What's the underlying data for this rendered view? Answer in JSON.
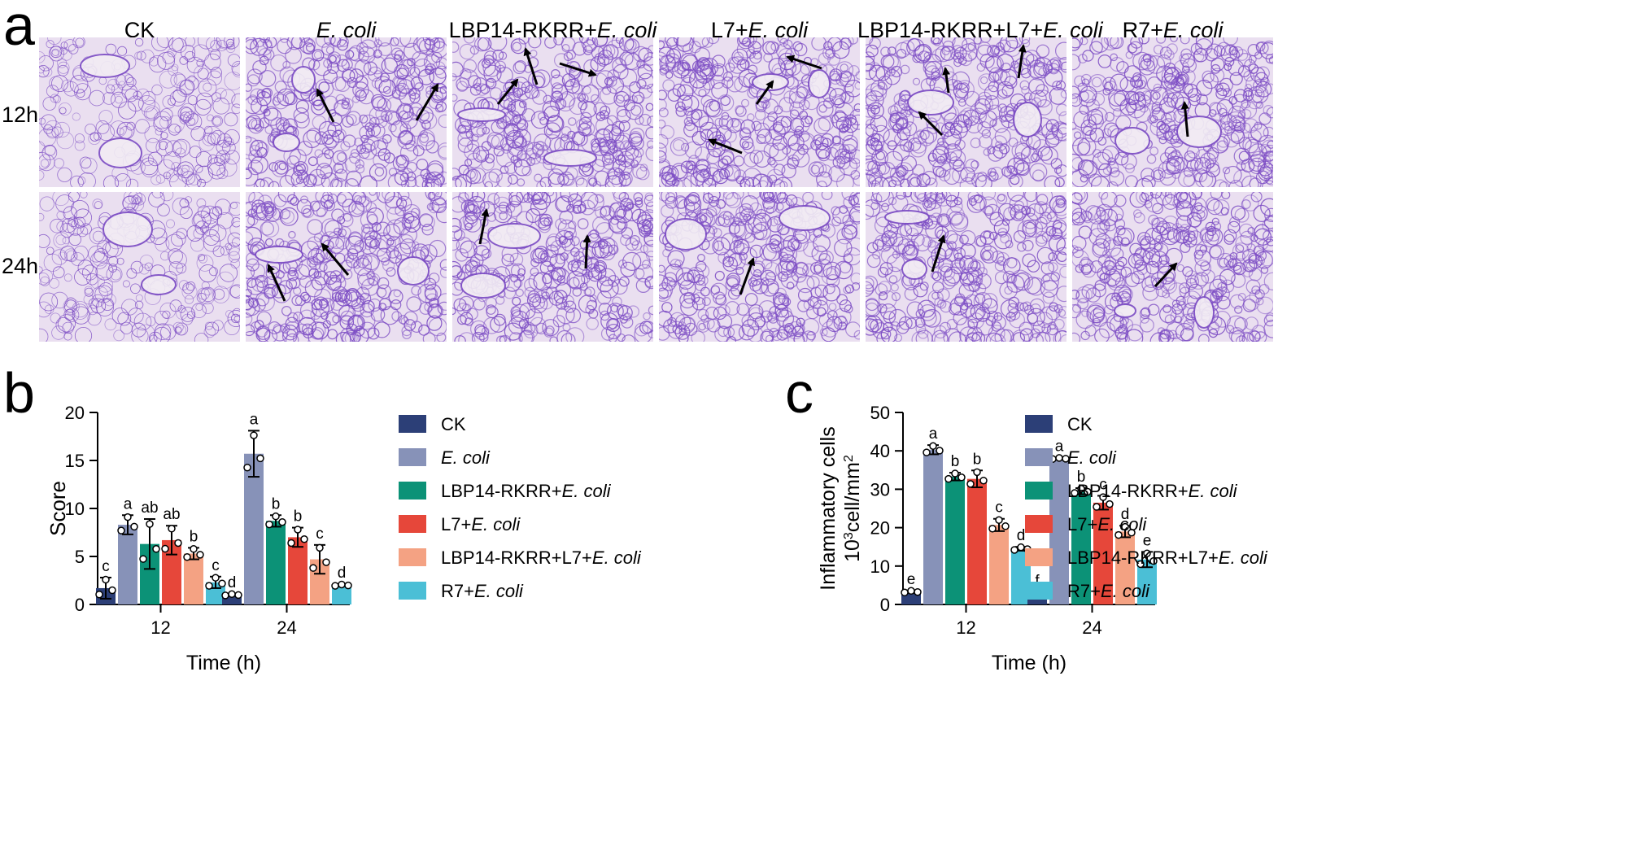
{
  "panels": {
    "a": "a",
    "b": "b",
    "c": "c"
  },
  "colors": {
    "CK": "#2c3f77",
    "E. coli": "#8792b8",
    "LBP14-RKRR+E. coli": "#0c9277",
    "L7+E. coli": "#e6473a",
    "LBP14-RKRR+L7+E. coli": "#f4a283",
    "R7+E. coli": "#4bbfd6",
    "tissue_bg": "#eadff0",
    "tissue_cell": "#7c4cc4"
  },
  "micrographs": {
    "columns": [
      {
        "pre": "CK",
        "ital": "",
        "post": ""
      },
      {
        "pre": "",
        "ital": "E. coli",
        "post": ""
      },
      {
        "pre": "LBP14-RKRR+",
        "ital": "E. coli",
        "post": ""
      },
      {
        "pre": "L7+",
        "ital": "E. coli",
        "post": ""
      },
      {
        "pre": "LBP14-RKRR+L7+",
        "ital": "E. coli",
        "post": ""
      },
      {
        "pre": "R7+",
        "ital": "E. coli",
        "post": ""
      }
    ],
    "rows": [
      "12h",
      "24h"
    ]
  },
  "chart_data": [
    {
      "id": "b",
      "type": "bar",
      "xlabel": "Time (h)",
      "ylabel": "Score",
      "ylim": [
        0,
        20
      ],
      "yticks": [
        "0",
        "5",
        "10",
        "15",
        "20"
      ],
      "categories": [
        "12",
        "24"
      ],
      "legend_position": "right",
      "series": [
        {
          "name": "CK",
          "values": [
            1.7,
            1.0
          ],
          "errors": [
            1.1,
            0.1
          ],
          "letters": [
            "c",
            "d"
          ]
        },
        {
          "name": "E. coli",
          "values": [
            8.3,
            15.7
          ],
          "errors": [
            1.0,
            2.4
          ],
          "letters": [
            "a",
            "a"
          ]
        },
        {
          "name": "LBP14-RKRR+E. coli",
          "values": [
            6.3,
            8.7
          ],
          "errors": [
            2.6,
            0.6
          ],
          "letters": [
            "ab",
            "b"
          ]
        },
        {
          "name": "L7+E. coli",
          "values": [
            6.7,
            7.0
          ],
          "errors": [
            1.5,
            1.0
          ],
          "letters": [
            "ab",
            "b"
          ]
        },
        {
          "name": "LBP14-RKRR+L7+E. coli",
          "values": [
            5.3,
            4.7
          ],
          "errors": [
            0.6,
            1.5
          ],
          "letters": [
            "b",
            "c"
          ]
        },
        {
          "name": "R7+E. coli",
          "values": [
            2.3,
            2.0
          ],
          "errors": [
            0.6,
            0.1
          ],
          "letters": [
            "c",
            "d"
          ]
        }
      ]
    },
    {
      "id": "c",
      "type": "bar",
      "xlabel": "Time (h)",
      "ylabel_line1": "Inflammatory cells",
      "ylabel_line2_pre": "10",
      "ylabel_line2_sup": "3",
      "ylabel_line2_mid": "cell/mm",
      "ylabel_line2_sup2": "2",
      "ylim": [
        0,
        50
      ],
      "yticks": [
        "0",
        "10",
        "20",
        "30",
        "40",
        "50"
      ],
      "categories": [
        "12",
        "24"
      ],
      "legend_position": "right",
      "series": [
        {
          "name": "CK",
          "values": [
            3.3,
            3.0
          ],
          "errors": [
            0.3,
            0.2
          ],
          "letters": [
            "e",
            "f"
          ]
        },
        {
          "name": "E. coli",
          "values": [
            40.3,
            38.0
          ],
          "errors": [
            1.2,
            0.2
          ],
          "letters": [
            "a",
            "a"
          ]
        },
        {
          "name": "LBP14-RKRR+E. coli",
          "values": [
            33.3,
            29.5
          ],
          "errors": [
            1.0,
            0.8
          ],
          "letters": [
            "b",
            "b"
          ]
        },
        {
          "name": "L7+E. coli",
          "values": [
            32.7,
            26.5
          ],
          "errors": [
            2.2,
            1.8
          ],
          "letters": [
            "b",
            "c"
          ]
        },
        {
          "name": "LBP14-RKRR+L7+E. coli",
          "values": [
            20.7,
            19.0
          ],
          "errors": [
            1.6,
            1.5
          ],
          "letters": [
            "c",
            "d"
          ]
        },
        {
          "name": "R7+E. coli",
          "values": [
            14.5,
            11.7
          ],
          "errors": [
            0.5,
            2.0
          ],
          "letters": [
            "d",
            "e"
          ]
        }
      ]
    }
  ]
}
